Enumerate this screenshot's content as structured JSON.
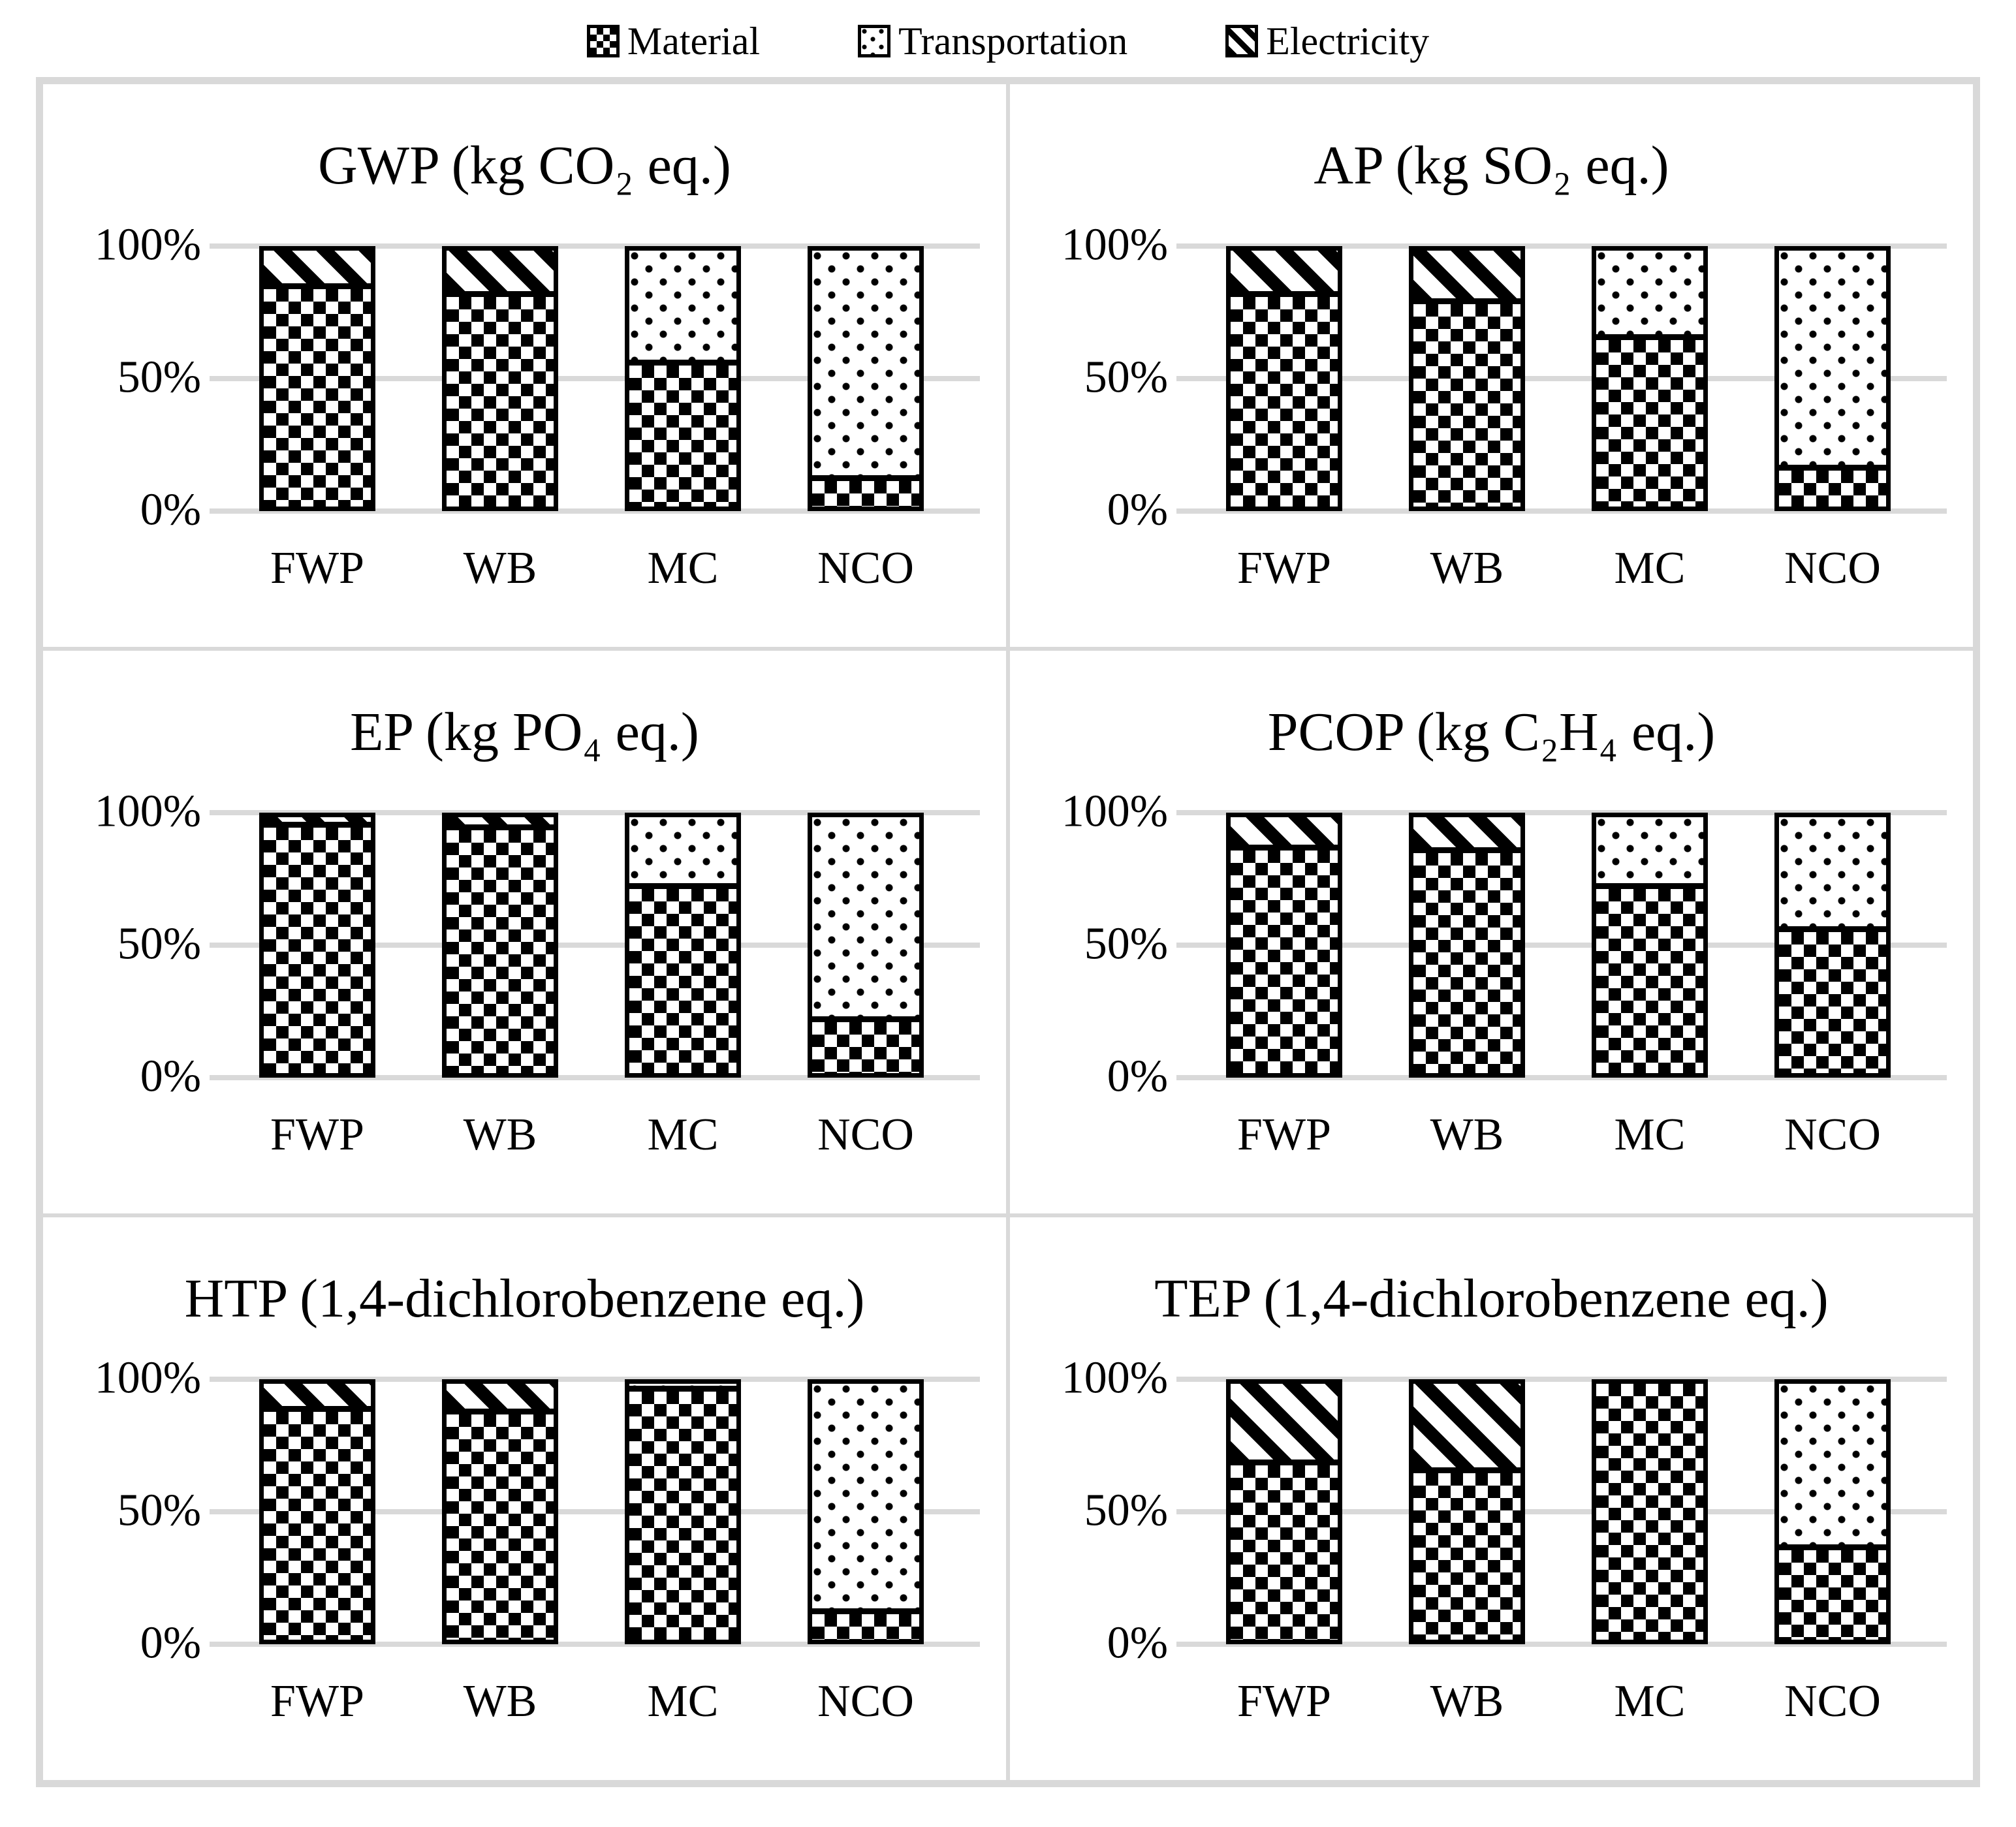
{
  "legend": {
    "items": [
      {
        "label": "Material",
        "pattern": "checker"
      },
      {
        "label": "Transportation",
        "pattern": "dots"
      },
      {
        "label": "Electricity",
        "pattern": "stripes"
      }
    ]
  },
  "chart_data": [
    {
      "type": "bar",
      "stacked": "percent",
      "title": "GWP (kg CO₂ eq.)",
      "categories": [
        "FWP",
        "WB",
        "MC",
        "NCO"
      ],
      "ylim": [
        0,
        100
      ],
      "grid": "horizontal",
      "legend_position": "top-center",
      "yticks": [
        {
          "label": "0%",
          "value": 0
        },
        {
          "label": "50%",
          "value": 50
        },
        {
          "label": "100%",
          "value": 100
        }
      ],
      "series": [
        {
          "name": "Material",
          "values": [
            85,
            82,
            55,
            10
          ]
        },
        {
          "name": "Transportation",
          "values": [
            0,
            0,
            45,
            90
          ]
        },
        {
          "name": "Electricity",
          "values": [
            15,
            18,
            0,
            0
          ]
        }
      ]
    },
    {
      "type": "bar",
      "stacked": "percent",
      "title": "AP  (kg SO₂ eq.)",
      "categories": [
        "FWP",
        "WB",
        "MC",
        "NCO"
      ],
      "ylim": [
        0,
        100
      ],
      "grid": "horizontal",
      "legend_position": "top-center",
      "yticks": [
        {
          "label": "0%",
          "value": 0
        },
        {
          "label": "50%",
          "value": 50
        },
        {
          "label": "100%",
          "value": 100
        }
      ],
      "series": [
        {
          "name": "Material",
          "values": [
            82,
            79,
            65,
            14
          ]
        },
        {
          "name": "Transportation",
          "values": [
            0,
            0,
            35,
            86
          ]
        },
        {
          "name": "Electricity",
          "values": [
            18,
            21,
            0,
            0
          ]
        }
      ]
    },
    {
      "type": "bar",
      "stacked": "percent",
      "title": "EP (kg PO₄ eq.)",
      "categories": [
        "FWP",
        "WB",
        "MC",
        "NCO"
      ],
      "ylim": [
        0,
        100
      ],
      "grid": "horizontal",
      "legend_position": "top-center",
      "yticks": [
        {
          "label": "0%",
          "value": 0
        },
        {
          "label": "50%",
          "value": 50
        },
        {
          "label": "100%",
          "value": 100
        }
      ],
      "series": [
        {
          "name": "Material",
          "values": [
            96,
            95,
            72,
            20
          ]
        },
        {
          "name": "Transportation",
          "values": [
            0,
            0,
            28,
            80
          ]
        },
        {
          "name": "Electricity",
          "values": [
            4,
            5,
            0,
            0
          ]
        }
      ]
    },
    {
      "type": "bar",
      "stacked": "percent",
      "title": "PCOP (kg C₂H₄ eq.)",
      "categories": [
        "FWP",
        "WB",
        "MC",
        "NCO"
      ],
      "ylim": [
        0,
        100
      ],
      "grid": "horizontal",
      "legend_position": "top-center",
      "yticks": [
        {
          "label": "0%",
          "value": 0
        },
        {
          "label": "50%",
          "value": 50
        },
        {
          "label": "100%",
          "value": 100
        }
      ],
      "series": [
        {
          "name": "Material",
          "values": [
            87,
            86,
            72,
            55
          ]
        },
        {
          "name": "Transportation",
          "values": [
            0,
            0,
            28,
            45
          ]
        },
        {
          "name": "Electricity",
          "values": [
            13,
            14,
            0,
            0
          ]
        }
      ]
    },
    {
      "type": "bar",
      "stacked": "percent",
      "title": "HTP (1,4-dichlorobenzene eq.)",
      "categories": [
        "FWP",
        "WB",
        "MC",
        "NCO"
      ],
      "ylim": [
        0,
        100
      ],
      "grid": "horizontal",
      "legend_position": "top-center",
      "yticks": [
        {
          "label": "0%",
          "value": 0
        },
        {
          "label": "50%",
          "value": 50
        },
        {
          "label": "100%",
          "value": 100
        }
      ],
      "series": [
        {
          "name": "Material",
          "values": [
            89,
            88,
            97,
            10
          ]
        },
        {
          "name": "Transportation",
          "values": [
            0,
            0,
            3,
            90
          ]
        },
        {
          "name": "Electricity",
          "values": [
            11,
            12,
            0,
            0
          ]
        }
      ]
    },
    {
      "type": "bar",
      "stacked": "percent",
      "title": "TEP (1,4-dichlorobenzene eq.)",
      "categories": [
        "FWP",
        "WB",
        "MC",
        "NCO"
      ],
      "ylim": [
        0,
        100
      ],
      "grid": "horizontal",
      "legend_position": "top-center",
      "yticks": [
        {
          "label": "0%",
          "value": 0
        },
        {
          "label": "50%",
          "value": 50
        },
        {
          "label": "100%",
          "value": 100
        }
      ],
      "series": [
        {
          "name": "Material",
          "values": [
            68,
            65,
            100,
            35
          ]
        },
        {
          "name": "Transportation",
          "values": [
            0,
            0,
            0,
            65
          ]
        },
        {
          "name": "Electricity",
          "values": [
            32,
            35,
            0,
            0
          ]
        }
      ]
    }
  ]
}
